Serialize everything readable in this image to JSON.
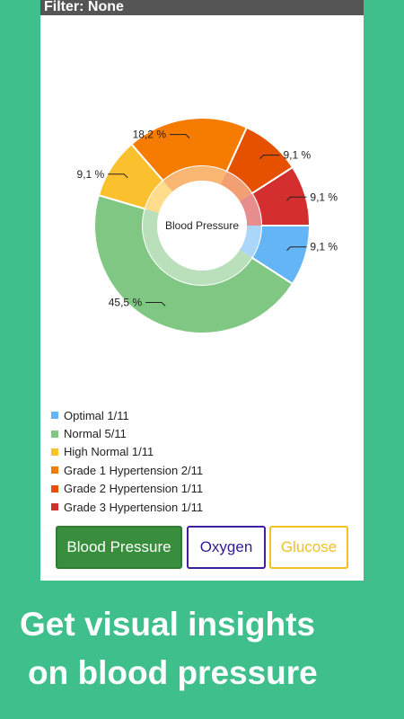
{
  "filter_bar": {
    "text": "Filter: None"
  },
  "chart_data": {
    "type": "pie",
    "variant": "donut",
    "title": "Blood Pressure",
    "slices": [
      {
        "name": "Optimal 1/11",
        "value": 9.1,
        "label": "9,1 %",
        "color": "#64b5f6"
      },
      {
        "name": "Normal 5/11",
        "value": 45.5,
        "label": "45,5 %",
        "color": "#81c784"
      },
      {
        "name": "High Normal 1/11",
        "value": 9.1,
        "label": "9,1 %",
        "color": "#fbc02d"
      },
      {
        "name": "Grade 1 Hypertension 2/11",
        "value": 18.2,
        "label": "18,2 %",
        "color": "#f57c00"
      },
      {
        "name": "Grade 2 Hypertension 1/11",
        "value": 9.1,
        "label": "9,1 %",
        "color": "#e65100"
      },
      {
        "name": "Grade 3 Hypertension 1/11",
        "value": 9.1,
        "label": "9,1 %",
        "color": "#d32f2f"
      }
    ]
  },
  "buttons": {
    "blood_pressure": "Blood Pressure",
    "oxygen": "Oxygen",
    "glucose": "Glucose"
  },
  "promo": {
    "line1": "Get visual insights",
    "line2": "on blood pressure"
  }
}
